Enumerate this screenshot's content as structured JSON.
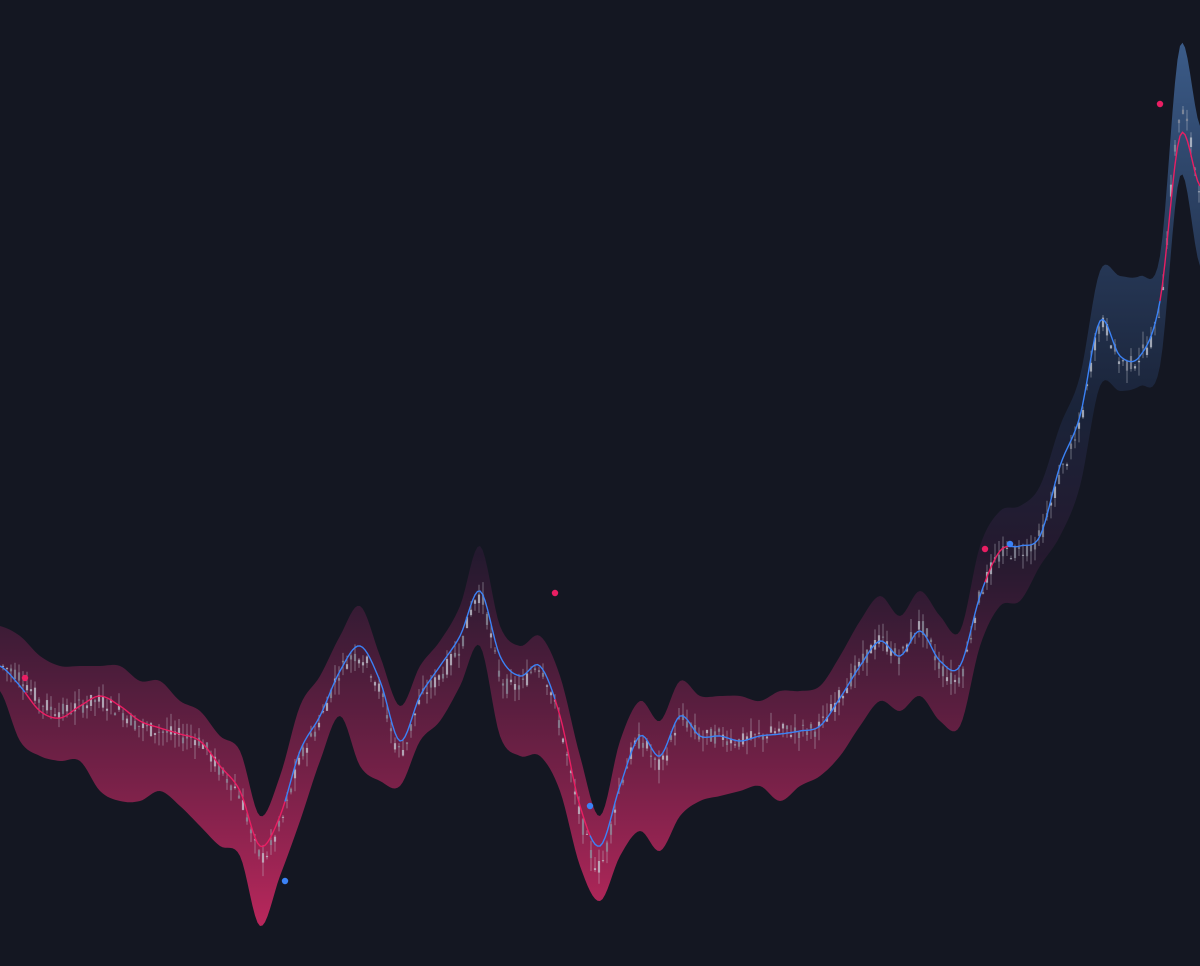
{
  "theme": {
    "background": "#141722",
    "band_upper_color": "#3d5f8e",
    "band_lower_color": "#c2285f",
    "trend_up_color": "#3b82f6",
    "trend_down_color": "#e91e63",
    "candle_color": "#c8ccd6"
  },
  "chart_data": {
    "type": "line",
    "title": "",
    "xlabel": "",
    "ylabel": "",
    "grid": false,
    "legend": "none",
    "ylim": [
      0,
      966
    ],
    "xlim": [
      0,
      240
    ],
    "series": [
      {
        "role": "price",
        "x": [
          0,
          4,
          8,
          12,
          16,
          20,
          24,
          28,
          32,
          36,
          40,
          44,
          48,
          52,
          56,
          60,
          64,
          68,
          72,
          76,
          80,
          84,
          88,
          92,
          96,
          100,
          104,
          108,
          112,
          116,
          120,
          124,
          128,
          132,
          136,
          140,
          144,
          148,
          152,
          156,
          160,
          164,
          168,
          172,
          176,
          180,
          184,
          188,
          192,
          196,
          200,
          204,
          208,
          212,
          216,
          220,
          224,
          228,
          232,
          236,
          240
        ],
        "y": [
          300,
          290,
          265,
          255,
          260,
          265,
          255,
          240,
          235,
          230,
          225,
          195,
          170,
          110,
          140,
          205,
          245,
          295,
          310,
          275,
          215,
          265,
          290,
          320,
          370,
          290,
          280,
          300,
          240,
          150,
          100,
          180,
          225,
          200,
          245,
          230,
          230,
          225,
          230,
          235,
          235,
          240,
          270,
          300,
          325,
          310,
          340,
          300,
          290,
          370,
          410,
          415,
          430,
          490,
          540,
          640,
          605,
          610,
          660,
          850,
          780
        ]
      },
      {
        "role": "trend",
        "x": [
          0,
          4,
          8,
          12,
          16,
          20,
          24,
          28,
          32,
          36,
          40,
          44,
          48,
          52,
          56,
          60,
          64,
          68,
          72,
          76,
          80,
          84,
          88,
          92,
          96,
          100,
          104,
          108,
          112,
          116,
          120,
          124,
          128,
          132,
          136,
          140,
          144,
          148,
          152,
          156,
          160,
          164,
          168,
          172,
          176,
          180,
          184,
          188,
          192,
          196,
          200,
          204,
          208,
          212,
          216,
          220,
          224,
          228,
          232,
          236,
          240
        ],
        "y": [
          300,
          280,
          255,
          248,
          260,
          270,
          260,
          245,
          238,
          232,
          225,
          200,
          175,
          120,
          150,
          215,
          250,
          295,
          320,
          285,
          225,
          270,
          300,
          330,
          375,
          310,
          290,
          300,
          250,
          160,
          120,
          180,
          230,
          210,
          250,
          230,
          230,
          225,
          230,
          232,
          235,
          240,
          268,
          300,
          325,
          310,
          335,
          305,
          300,
          370,
          415,
          420,
          430,
          500,
          550,
          645,
          610,
          610,
          665,
          830,
          780
        ]
      },
      {
        "role": "band-upper",
        "x": [
          0,
          4,
          8,
          12,
          16,
          20,
          24,
          28,
          32,
          36,
          40,
          44,
          48,
          52,
          56,
          60,
          64,
          68,
          72,
          76,
          80,
          84,
          88,
          92,
          96,
          100,
          104,
          108,
          112,
          116,
          120,
          124,
          128,
          132,
          136,
          140,
          144,
          148,
          152,
          156,
          160,
          164,
          168,
          172,
          176,
          180,
          184,
          188,
          192,
          196,
          200,
          204,
          208,
          212,
          216,
          220,
          224,
          228,
          232,
          236,
          240
        ],
        "y": [
          340,
          330,
          310,
          300,
          300,
          300,
          300,
          285,
          285,
          265,
          255,
          230,
          215,
          150,
          190,
          260,
          290,
          330,
          360,
          310,
          260,
          300,
          325,
          360,
          420,
          340,
          320,
          330,
          290,
          210,
          150,
          225,
          265,
          245,
          285,
          270,
          270,
          270,
          265,
          275,
          275,
          280,
          310,
          345,
          370,
          350,
          375,
          350,
          335,
          420,
          455,
          460,
          480,
          540,
          590,
          695,
          690,
          690,
          710,
          920,
          840
        ]
      },
      {
        "role": "band-lower",
        "x": [
          0,
          4,
          8,
          12,
          16,
          20,
          24,
          28,
          32,
          36,
          40,
          44,
          48,
          52,
          56,
          60,
          64,
          68,
          72,
          76,
          80,
          84,
          88,
          92,
          96,
          100,
          104,
          108,
          112,
          116,
          120,
          124,
          128,
          132,
          136,
          140,
          144,
          148,
          152,
          156,
          160,
          164,
          168,
          172,
          176,
          180,
          184,
          188,
          192,
          196,
          200,
          204,
          208,
          212,
          216,
          220,
          224,
          228,
          232,
          236,
          240
        ],
        "y": [
          275,
          225,
          210,
          205,
          205,
          175,
          165,
          165,
          175,
          160,
          140,
          120,
          110,
          40,
          90,
          145,
          205,
          250,
          200,
          185,
          180,
          225,
          245,
          280,
          320,
          230,
          210,
          210,
          175,
          100,
          65,
          110,
          135,
          115,
          150,
          165,
          170,
          175,
          180,
          165,
          180,
          190,
          210,
          240,
          265,
          255,
          270,
          245,
          240,
          320,
          360,
          365,
          400,
          430,
          480,
          580,
          575,
          580,
          600,
          790,
          700
        ]
      }
    ],
    "markers": [
      {
        "x": 5,
        "y": 288,
        "kind": "down"
      },
      {
        "x": 57,
        "y": 85,
        "kind": "up"
      },
      {
        "x": 111,
        "y": 373,
        "kind": "down"
      },
      {
        "x": 118,
        "y": 160,
        "kind": "up"
      },
      {
        "x": 197,
        "y": 417,
        "kind": "down"
      },
      {
        "x": 202,
        "y": 422,
        "kind": "up"
      },
      {
        "x": 232,
        "y": 862,
        "kind": "down"
      }
    ]
  }
}
